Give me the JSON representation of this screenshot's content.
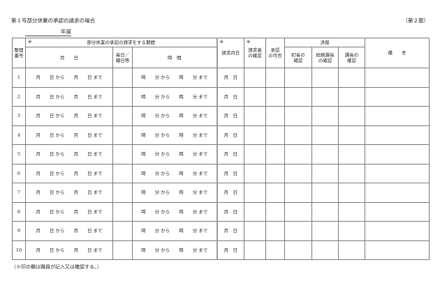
{
  "title": "第１号部分休業の承認の請求の場合",
  "page_label": "（第２面）",
  "year_label": "年度",
  "header": {
    "mark": "※",
    "number": "整理\n番号",
    "period": "部分休業の承認の請求をする期間",
    "month_day": "月　　日",
    "daily": "毎日／\n曜日等",
    "time": "時　間",
    "request_date": "請求月日",
    "requester_confirm": "請求者\nの確認",
    "approval": "承認\nの可否",
    "decision": "決裁",
    "mayor": "町長の\n確認",
    "general_affairs": "総務課長\nの確認",
    "section_chief": "課長の\n確認",
    "remarks": "備　　考"
  },
  "row_template": {
    "date_range": "月　　日 から　　月　　日 まで",
    "time_range": "時　　分 から　　時　　分 まで",
    "request_date": "月　日"
  },
  "rows": [
    "1",
    "2",
    "3",
    "4",
    "5",
    "6",
    "7",
    "8",
    "9",
    "10"
  ],
  "note": "（※印の欄は職員が記入又は確認する。）"
}
